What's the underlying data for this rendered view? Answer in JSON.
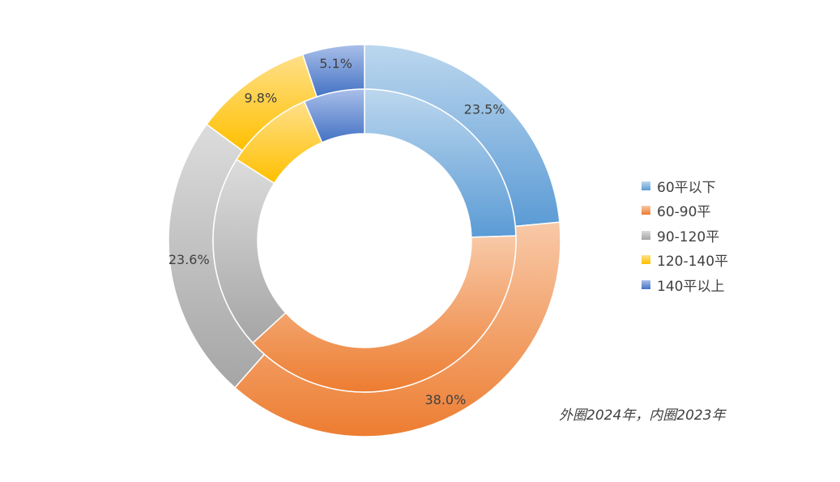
{
  "chart_data": {
    "type": "pie",
    "variant": "double-donut",
    "categories": [
      "60平以下",
      "60-90平",
      "90-120平",
      "120-140平",
      "140平以上"
    ],
    "series": [
      {
        "ring": "outer",
        "values": [
          23.5,
          38.0,
          23.6,
          9.8,
          5.1
        ],
        "labels": [
          "23.5%",
          "38.0%",
          "23.6%",
          "9.8%",
          "5.1%"
        ]
      },
      {
        "ring": "inner",
        "values": [
          24.5,
          38.7,
          20.8,
          9.5,
          6.5
        ]
      }
    ],
    "colors": [
      {
        "light": "#bcd7ee",
        "dark": "#5b9bd5"
      },
      {
        "light": "#f8c9a8",
        "dark": "#ed7d31"
      },
      {
        "light": "#dcdcdc",
        "dark": "#a5a5a5"
      },
      {
        "light": "#ffe08a",
        "dark": "#ffc000"
      },
      {
        "light": "#a9bfe9",
        "dark": "#4472c4"
      }
    ],
    "legend_position": "right",
    "annotation": "外圈2024年，内圈2023年"
  }
}
